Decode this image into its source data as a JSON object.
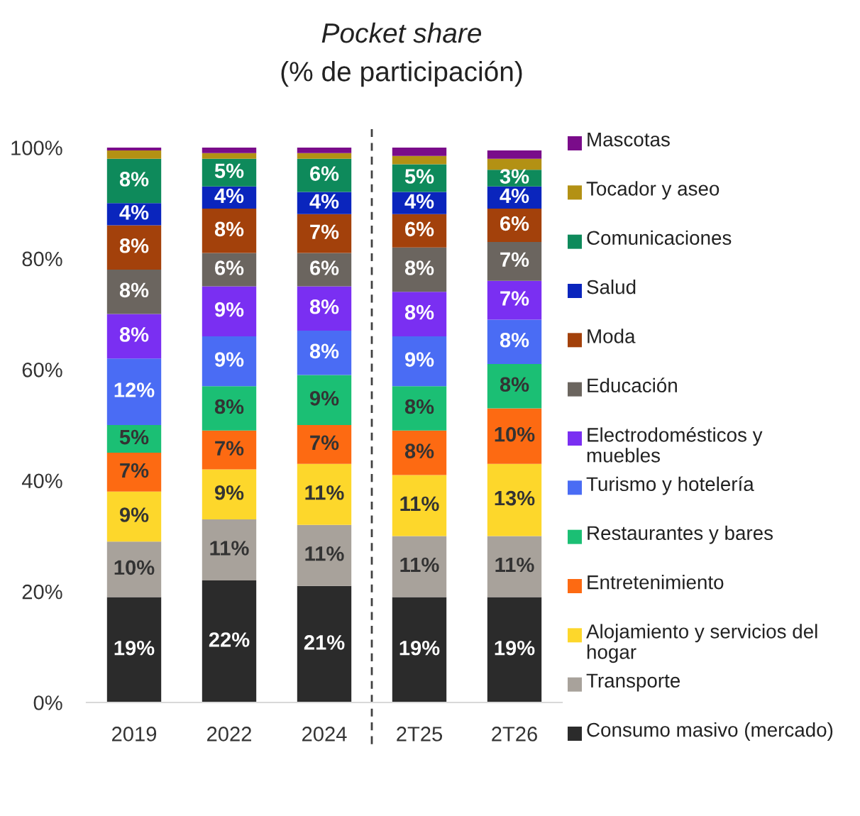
{
  "chart_data": {
    "type": "bar",
    "stacked": true,
    "title": "Pocket share",
    "subtitle": "(% de participación)",
    "categories": [
      "2019",
      "2022",
      "2024",
      "2T25",
      "2T26"
    ],
    "series": [
      {
        "name": "Consumo masivo (mercado)",
        "color": "#2b2b2b",
        "values": [
          19,
          22,
          21,
          19,
          19
        ],
        "value_labels": [
          "19%",
          "22%",
          "21%",
          "19%",
          "19%"
        ]
      },
      {
        "name": "Transporte",
        "color": "#a8a29b",
        "values": [
          10,
          11,
          11,
          11,
          11
        ],
        "value_labels": [
          "10%",
          "11%",
          "11%",
          "11%",
          "11%"
        ]
      },
      {
        "name": "Alojamiento y servicios del hogar",
        "color": "#fdd72b",
        "values": [
          9,
          9,
          11,
          11,
          13
        ],
        "value_labels": [
          "9%",
          "9%",
          "11%",
          "11%",
          "13%"
        ]
      },
      {
        "name": "Entretenimiento",
        "color": "#fd6a12",
        "values": [
          7,
          7,
          7,
          8,
          10
        ],
        "value_labels": [
          "7%",
          "7%",
          "7%",
          "8%",
          "10%"
        ]
      },
      {
        "name": "Restaurantes y bares",
        "color": "#1bbf74",
        "values": [
          5,
          8,
          9,
          8,
          8
        ],
        "value_labels": [
          "5%",
          "8%",
          "9%",
          "8%",
          "8%"
        ]
      },
      {
        "name": "Turismo y hotelería",
        "color": "#4a6cf4",
        "values": [
          12,
          9,
          8,
          9,
          8
        ],
        "value_labels": [
          "12%",
          "9%",
          "8%",
          "9%",
          "8%"
        ]
      },
      {
        "name": "Electrodomésticos y muebles",
        "color": "#7a2ff2",
        "values": [
          8,
          9,
          8,
          8,
          7
        ],
        "value_labels": [
          "8%",
          "9%",
          "8%",
          "8%",
          "7%"
        ]
      },
      {
        "name": "Educación",
        "color": "#6b655f",
        "values": [
          8,
          6,
          6,
          8,
          7
        ],
        "value_labels": [
          "8%",
          "6%",
          "6%",
          "8%",
          "7%"
        ]
      },
      {
        "name": "Moda",
        "color": "#a3410b",
        "values": [
          8,
          8,
          7,
          6,
          6
        ],
        "value_labels": [
          "8%",
          "8%",
          "7%",
          "6%",
          "6%"
        ]
      },
      {
        "name": "Salud",
        "color": "#0a25bd",
        "values": [
          4,
          4,
          4,
          4,
          4
        ],
        "value_labels": [
          "4%",
          "4%",
          "4%",
          "4%",
          "4%"
        ]
      },
      {
        "name": "Comunicaciones",
        "color": "#0e8a5b",
        "values": [
          8,
          5,
          6,
          5,
          3
        ],
        "value_labels": [
          "8%",
          "5%",
          "6%",
          "5%",
          "3%"
        ]
      },
      {
        "name": "Tocador y aseo",
        "color": "#b39114",
        "values": [
          1.5,
          1,
          1,
          1.5,
          2
        ]
      },
      {
        "name": "Mascotas",
        "color": "#7a0c8a",
        "values": [
          0.5,
          1,
          1,
          1.5,
          1.5
        ]
      }
    ],
    "ylim": [
      0,
      100
    ],
    "yticks": [
      {
        "value": 0,
        "label": "0%"
      },
      {
        "value": 20,
        "label": "20%"
      },
      {
        "value": 40,
        "label": "40%"
      },
      {
        "value": 60,
        "label": "60%"
      },
      {
        "value": 80,
        "label": "80%"
      },
      {
        "value": 100,
        "label": "100%"
      }
    ],
    "legend": "right"
  }
}
